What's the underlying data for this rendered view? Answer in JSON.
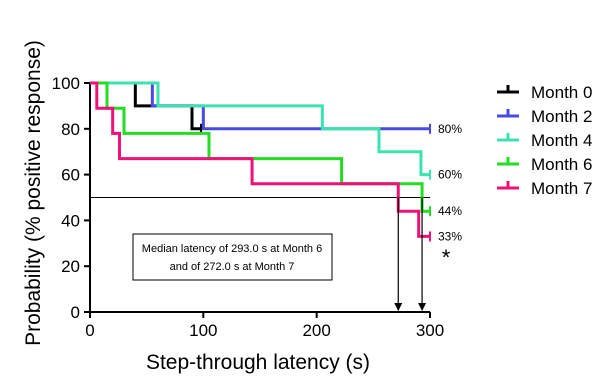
{
  "chart_data": {
    "type": "line",
    "step": true,
    "title": "",
    "xlabel": "Step-through latency (s)",
    "ylabel": "Probability (% positive response)",
    "xlim": [
      0,
      300
    ],
    "ylim": [
      0,
      100
    ],
    "xticks": [
      "0",
      "100",
      "200",
      "300"
    ],
    "yticks": [
      "0",
      "20",
      "40",
      "60",
      "80",
      "100"
    ],
    "grid": false,
    "legend": "right",
    "series": [
      {
        "name": "Month 0",
        "color": "#000000",
        "points": [
          [
            0,
            100
          ],
          [
            40,
            100
          ],
          [
            40,
            90
          ],
          [
            90,
            90
          ],
          [
            90,
            80
          ],
          [
            98,
            80
          ]
        ]
      },
      {
        "name": "Month 2",
        "color": "#4a4ae0",
        "points": [
          [
            0,
            100
          ],
          [
            55,
            100
          ],
          [
            55,
            90
          ],
          [
            100,
            90
          ],
          [
            100,
            80
          ],
          [
            300,
            80
          ]
        ],
        "end_label": "80%"
      },
      {
        "name": "Month 4",
        "color": "#3be3b0",
        "points": [
          [
            0,
            100
          ],
          [
            60,
            100
          ],
          [
            60,
            90
          ],
          [
            205,
            90
          ],
          [
            205,
            80
          ],
          [
            255,
            80
          ],
          [
            255,
            70
          ],
          [
            292,
            70
          ],
          [
            292,
            60
          ],
          [
            300,
            60
          ]
        ],
        "end_label": "60%"
      },
      {
        "name": "Month 6",
        "color": "#22dd22",
        "points": [
          [
            0,
            100
          ],
          [
            15,
            100
          ],
          [
            15,
            89
          ],
          [
            30,
            89
          ],
          [
            30,
            78
          ],
          [
            105,
            78
          ],
          [
            105,
            67
          ],
          [
            222,
            67
          ],
          [
            222,
            56
          ],
          [
            293,
            56
          ],
          [
            293,
            44
          ],
          [
            300,
            44
          ]
        ],
        "end_label": "44%"
      },
      {
        "name": "Month 7",
        "color": "#ee1177",
        "points": [
          [
            0,
            100
          ],
          [
            6,
            100
          ],
          [
            6,
            89
          ],
          [
            20,
            89
          ],
          [
            20,
            78
          ],
          [
            26,
            78
          ],
          [
            26,
            67
          ],
          [
            143,
            67
          ],
          [
            143,
            56
          ],
          [
            272,
            56
          ],
          [
            272,
            44
          ],
          [
            290,
            44
          ],
          [
            290,
            33
          ],
          [
            300,
            33
          ]
        ],
        "end_label": "33%"
      }
    ],
    "reference_line_y": 50,
    "median_markers_x": [
      272,
      293
    ],
    "annotation": [
      "Median latency of 293.0 s at Month 6",
      "and of 272.0 s at Month 7"
    ],
    "significance": "*"
  }
}
